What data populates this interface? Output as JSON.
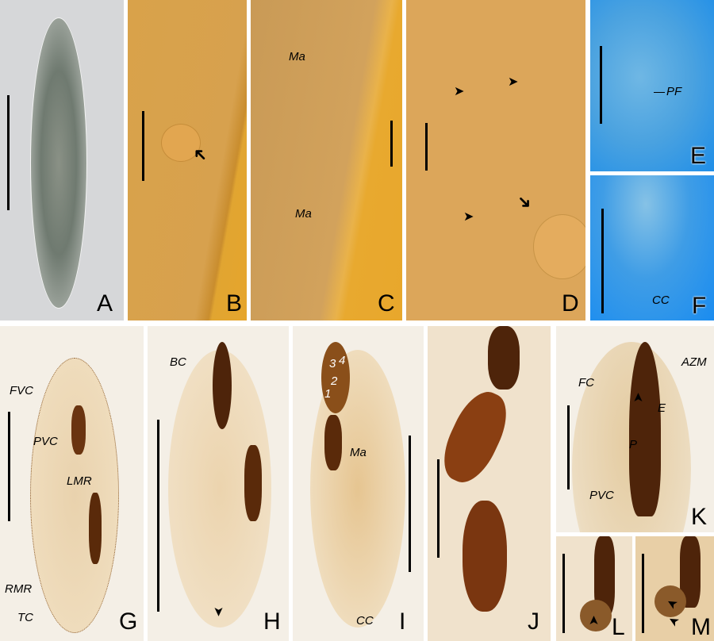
{
  "panels": {
    "A": {
      "letter": "A"
    },
    "B": {
      "letter": "B"
    },
    "C": {
      "letter": "C",
      "labels": [
        "Ma",
        "Ma"
      ]
    },
    "D": {
      "letter": "D"
    },
    "E": {
      "letter": "E",
      "labels": [
        "PF"
      ]
    },
    "F": {
      "letter": "F",
      "labels": [
        "CC"
      ]
    },
    "G": {
      "letter": "G",
      "labels": [
        "FVC",
        "PVC",
        "LMR",
        "RMR",
        "TC"
      ]
    },
    "H": {
      "letter": "H",
      "labels": [
        "BC"
      ]
    },
    "I": {
      "letter": "I",
      "labels": [
        "1",
        "2",
        "3",
        "4",
        "Ma",
        "CC"
      ]
    },
    "J": {
      "letter": "J"
    },
    "K": {
      "letter": "K",
      "labels": [
        "FC",
        "AZM",
        "E",
        "P",
        "PVC"
      ]
    },
    "L": {
      "letter": "L"
    },
    "M": {
      "letter": "M"
    }
  },
  "colors": {
    "brightfield": "#d8d8d8",
    "dic_orange": "#e2a53a",
    "phase_blue": "#2f8fe0",
    "silver_bg": "#f2ede4",
    "stain_brown": "#5a2a0a"
  }
}
